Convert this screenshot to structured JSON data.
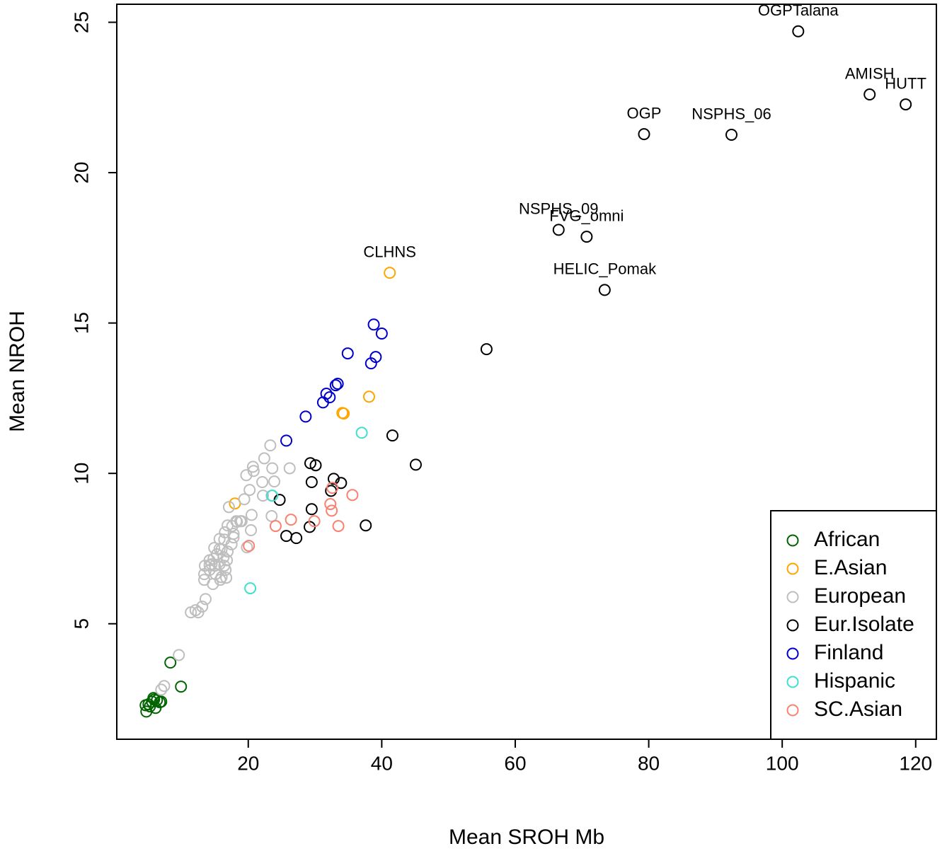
{
  "chart_data": {
    "type": "scatter",
    "x_label": "Mean SROH Mb",
    "y_label": "Mean NROH",
    "xlim": [
      0.3,
      123.1
    ],
    "ylim": [
      1.16,
      25.6
    ],
    "xticks": [
      20,
      40,
      60,
      80,
      100,
      120
    ],
    "yticks": [
      5,
      10,
      15,
      20,
      25
    ],
    "legend": "bottom-right",
    "series": [
      {
        "name": "African",
        "color": "#006400",
        "x": [
          8.33,
          9.92,
          4.73,
          5.05,
          5.58,
          5.9,
          6.32,
          6.74,
          6.11,
          5.26,
          6.96,
          4.62,
          5.79
        ],
        "y": [
          3.71,
          2.91,
          2.08,
          2.32,
          2.41,
          2.48,
          2.46,
          2.39,
          2.2,
          2.25,
          2.41,
          2.29,
          2.53
        ]
      },
      {
        "name": "E.Asian",
        "color": "#ffa500",
        "x": [
          41.2,
          38.1,
          34.1,
          34.3,
          18.0
        ],
        "y": [
          16.67,
          12.55,
          12.01,
          11.99,
          9.0
        ],
        "labels": [
          "CLHNS",
          null,
          null,
          null,
          null
        ]
      },
      {
        "name": "European",
        "color": "#bebebe",
        "x": [
          9.6,
          7.4,
          6.96,
          11.4,
          12.1,
          13.1,
          13.6,
          12.5,
          23.3,
          22.4,
          20.7,
          20.8,
          19.7,
          23.6,
          26.2,
          22.1,
          23.9,
          20.2,
          19.4,
          22.2,
          23.5,
          20.5,
          23.5,
          17.1,
          19.0,
          18.2,
          17.6,
          16.9,
          16.5,
          15.7,
          20.4,
          19.8,
          17.8,
          17.5,
          16.9,
          16.0,
          15.3,
          14.8,
          14.2,
          13.5,
          14.2,
          15.1,
          16.0,
          16.7,
          15.8,
          14.7,
          13.4,
          13.4,
          14.2,
          15.0,
          16.4,
          16.3,
          16.8,
          16.6,
          15.7,
          14.9,
          18.3,
          18.8,
          17.8,
          16.4,
          14.5,
          15.7
        ],
        "y": [
          3.96,
          2.93,
          2.81,
          5.38,
          5.45,
          5.57,
          5.82,
          5.38,
          10.93,
          10.5,
          10.22,
          10.08,
          9.94,
          10.17,
          10.17,
          9.71,
          9.73,
          9.45,
          9.14,
          9.26,
          9.26,
          8.62,
          8.58,
          8.88,
          8.41,
          8.41,
          8.25,
          8.27,
          8.04,
          7.82,
          8.11,
          7.54,
          7.87,
          7.64,
          7.4,
          7.47,
          7.31,
          7.16,
          6.95,
          6.93,
          6.79,
          6.65,
          6.55,
          6.53,
          6.46,
          6.32,
          6.65,
          6.46,
          7.11,
          6.93,
          6.93,
          7.21,
          7.11,
          6.79,
          7.49,
          7.52,
          8.39,
          8.41,
          7.99,
          7.8,
          6.98,
          6.98
        ]
      },
      {
        "name": "Eur.Isolate",
        "color": "#000000",
        "x": [
          102.4,
          113.1,
          118.5,
          79.3,
          92.4,
          66.5,
          70.7,
          73.4,
          55.7,
          41.6,
          45.1,
          29.3,
          30.1,
          29.5,
          32.8,
          33.9,
          32.4,
          29.5,
          24.7,
          29.2,
          37.6,
          25.7,
          27.2
        ],
        "y": [
          24.7,
          22.6,
          22.27,
          21.28,
          21.26,
          18.1,
          17.87,
          16.1,
          14.13,
          11.26,
          10.29,
          10.34,
          10.27,
          9.71,
          9.82,
          9.68,
          9.42,
          8.81,
          9.12,
          8.22,
          8.27,
          7.92,
          7.85
        ],
        "labels": [
          "OGPTalana",
          "AMISH",
          "HUTT",
          "OGP",
          "NSPHS_06",
          "NSPHS_09",
          "FVG_omni",
          "HELIC_Pomak",
          null,
          null,
          null,
          null,
          null,
          null,
          null,
          null,
          null,
          null,
          null,
          null,
          null,
          null,
          null
        ]
      },
      {
        "name": "Finland",
        "color": "#0000cd",
        "x": [
          38.8,
          40.0,
          34.9,
          39.1,
          38.4,
          33.4,
          33.1,
          31.7,
          32.2,
          31.2,
          28.6,
          25.7
        ],
        "y": [
          14.95,
          14.65,
          13.99,
          13.87,
          13.66,
          12.98,
          12.93,
          12.65,
          12.53,
          12.36,
          11.89,
          11.09
        ]
      },
      {
        "name": "Hispanic",
        "color": "#40e0d0",
        "x": [
          37.0,
          23.6,
          20.3
        ],
        "y": [
          11.35,
          9.26,
          6.18
        ]
      },
      {
        "name": "SC.Asian",
        "color": "#fa8072",
        "x": [
          35.6,
          32.6,
          32.3,
          32.5,
          29.9,
          26.4,
          24.1,
          33.5,
          20.1
        ],
        "y": [
          9.28,
          9.52,
          8.98,
          8.76,
          8.41,
          8.46,
          8.25,
          8.25,
          7.59
        ]
      }
    ]
  }
}
